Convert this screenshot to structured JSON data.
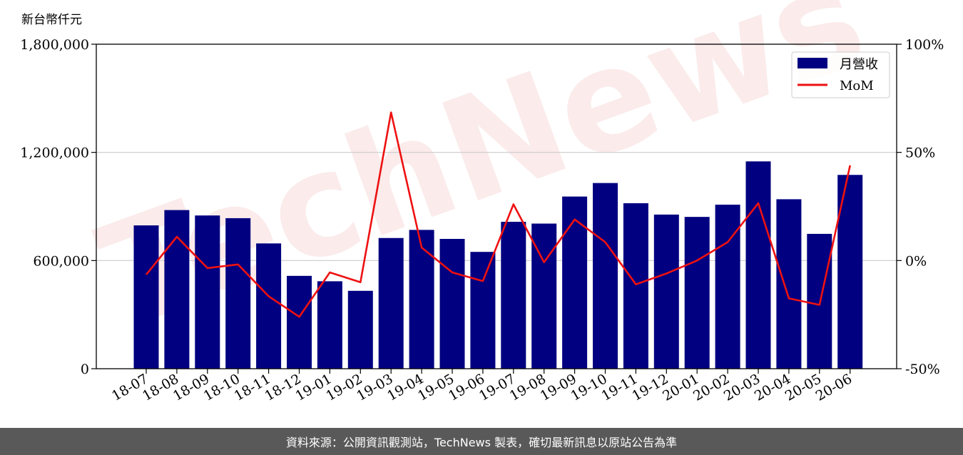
{
  "chart_data": {
    "type": "bar",
    "title": "",
    "ylabel": "新台幣仟元",
    "xlabel": "",
    "categories": [
      "18-07",
      "18-08",
      "18-09",
      "18-10",
      "18-11",
      "18-12",
      "19-01",
      "19-02",
      "19-03",
      "19-04",
      "19-05",
      "19-06",
      "19-07",
      "19-08",
      "19-09",
      "19-10",
      "19-11",
      "19-12",
      "20-01",
      "20-02",
      "20-03",
      "20-04",
      "20-05",
      "20-06"
    ],
    "ylim": [
      0,
      1800000
    ],
    "y_ticks": [
      0,
      600000,
      1200000,
      1800000
    ],
    "y_tick_labels": [
      "0",
      "600,000",
      "1,200,000",
      "1,800,000"
    ],
    "y2lim": [
      -50,
      100
    ],
    "y2_ticks": [
      -50,
      0,
      50,
      100
    ],
    "y2_tick_labels": [
      "-50%",
      "0%",
      "50%",
      "100%"
    ],
    "grid": "horizontal",
    "legend_position": "top-right",
    "series": [
      {
        "name": "月營收",
        "type": "bar",
        "axis": "left",
        "color": "#000080",
        "values": [
          795000,
          880000,
          850000,
          835000,
          695000,
          515000,
          485000,
          432000,
          725000,
          770000,
          720000,
          648000,
          815000,
          805000,
          955000,
          1030000,
          918000,
          855000,
          842000,
          910000,
          1150000,
          940000,
          748000,
          1075000
        ]
      },
      {
        "name": "MoM",
        "type": "line",
        "axis": "right",
        "color": "#ee1111",
        "values": [
          -6.5,
          11,
          -3.5,
          -1.8,
          -16.5,
          -26,
          -5.5,
          -10,
          68.5,
          6,
          -5.5,
          -9.5,
          26,
          -0.8,
          19,
          8.5,
          -11,
          -6,
          0,
          8.5,
          26.5,
          -17.5,
          -20.5,
          44
        ]
      }
    ]
  },
  "footer": {
    "text": "資料來源：公開資訊觀測站，TechNews 製表，確切最新訊息以原站公告為準"
  }
}
